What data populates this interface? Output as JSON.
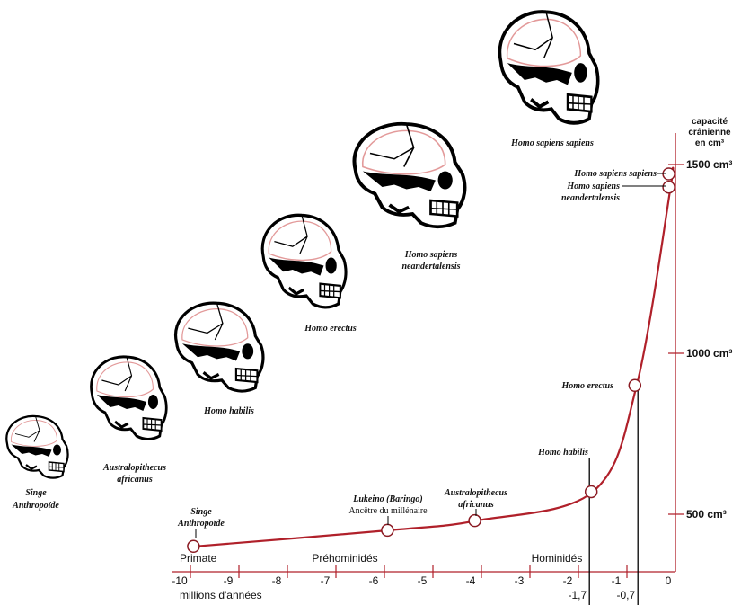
{
  "chart_data": {
    "type": "line",
    "xlabel": "millions d'années",
    "ylabel": [
      "capacité",
      "crânienne",
      "en cm³"
    ],
    "x_ticks": [
      "-10",
      "-9",
      "-8",
      "-7",
      "-6",
      "-5",
      "-4",
      "-3",
      "-2",
      "-1",
      "0"
    ],
    "y_ticks": [
      {
        "value": 500,
        "label": "500 cm³"
      },
      {
        "value": 1000,
        "label": "1000 cm³"
      },
      {
        "value": 1500,
        "label": "1500 cm³"
      }
    ],
    "xlim": [
      -10,
      0
    ],
    "line_color": "#b0202a",
    "phases": [
      "Primate",
      "Préhominidés",
      "Hominidés"
    ],
    "markers": [
      {
        "x": -1.7,
        "label": "-1,7"
      },
      {
        "x": -0.7,
        "label": "-0,7"
      }
    ],
    "points": [
      {
        "x": -9.9,
        "y": 400,
        "label": [
          "Singe",
          "Anthropoïde"
        ]
      },
      {
        "x": -5.9,
        "y": 450,
        "label": [
          "Lukeino (Baringo)"
        ],
        "sublabel": "Ancêtre du millénaire"
      },
      {
        "x": -4.1,
        "y": 480,
        "label": [
          "Australopithecus",
          "africanus"
        ]
      },
      {
        "x": -1.7,
        "y": 570,
        "label": [
          "Homo habilis"
        ]
      },
      {
        "x": -0.8,
        "y": 900,
        "label": [
          "Homo erectus"
        ]
      },
      {
        "x": -0.1,
        "y": 1440,
        "label": [
          "Homo sapiens",
          "neandertalensis"
        ]
      },
      {
        "x": -0.1,
        "y": 1475,
        "label": [
          "Homo sapiens sapiens"
        ]
      }
    ]
  },
  "skulls": [
    {
      "name": "Singe",
      "name2": "Anthropoïde"
    },
    {
      "name": "Australopithecus",
      "name2": "africanus"
    },
    {
      "name": "Homo habilis"
    },
    {
      "name": "Homo erectus"
    },
    {
      "name": "Homo sapiens",
      "name2": "neandertalensis"
    },
    {
      "name": "Homo sapiens sapiens"
    }
  ]
}
